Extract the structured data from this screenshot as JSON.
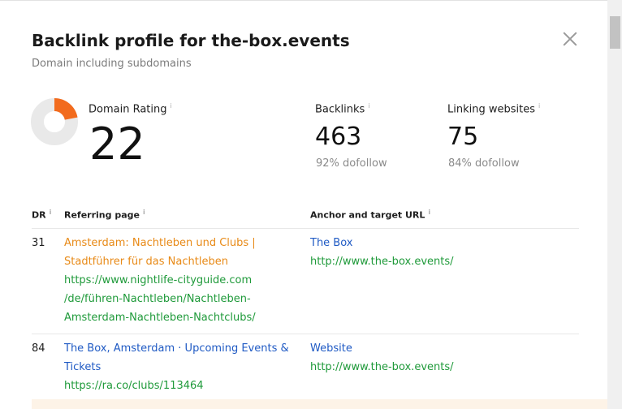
{
  "modal": {
    "title": "Backlink profile for the-box.events",
    "subtitle": "Domain including subdomains"
  },
  "stats": {
    "domain_rating": {
      "label": "Domain Rating",
      "value": "22",
      "fraction": 0.22
    },
    "backlinks": {
      "label": "Backlinks",
      "value": "463",
      "sub": "92% dofollow"
    },
    "linking_websites": {
      "label": "Linking websites",
      "value": "75",
      "sub": "84% dofollow"
    }
  },
  "table": {
    "headers": {
      "dr": "DR",
      "referring": "Referring page",
      "anchor": "Anchor and target URL"
    },
    "rows": [
      {
        "dr": "31",
        "title_lines": [
          "Amsterdam: Nachtleben und Clubs |",
          "Stadtführer für das Nachtleben"
        ],
        "url_lines": [
          "https://www.nightlife-cityguide.com",
          "/de/führen-Nachtleben/Nachtleben-",
          "Amsterdam-Nachtleben-Nachtclubs/"
        ],
        "anchor": "The Box",
        "target": "http://www.the-box.events/"
      },
      {
        "dr": "84",
        "title_lines": [
          "The Box, Amsterdam · Upcoming Events &",
          "Tickets"
        ],
        "url_lines": [
          "https://ra.co/clubs/113464"
        ],
        "anchor": "Website",
        "target": "http://www.the-box.events/"
      }
    ]
  },
  "info_icon": "i",
  "colors": {
    "donut_fill": "#f26b1d",
    "donut_track": "#e9e9e9"
  }
}
